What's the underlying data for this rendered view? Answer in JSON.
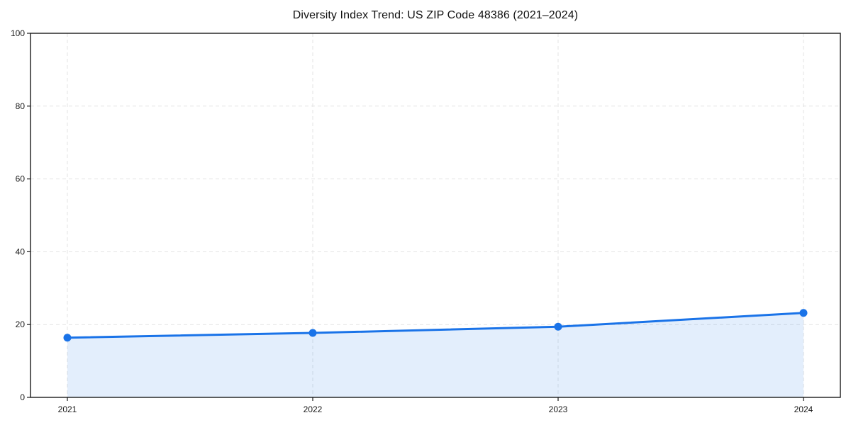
{
  "chart_data": {
    "type": "line",
    "title": "Diversity Index Trend: US ZIP Code 48386 (2021–2024)",
    "xlabel": "",
    "ylabel": "",
    "x": [
      "2021",
      "2022",
      "2023",
      "2024"
    ],
    "values": [
      16.4,
      17.7,
      19.4,
      23.2
    ],
    "ylim": [
      0,
      100
    ],
    "yticks": [
      0,
      20,
      40,
      60,
      80,
      100
    ],
    "grid": "on",
    "grid_style": "dashed",
    "legend_position": "none",
    "area_fill": "under-line",
    "marker": "circle",
    "colors": {
      "line": "#1a73e8",
      "marker": "#1a73e8",
      "fill": "#1a73e8",
      "fill_opacity": "0.12",
      "grid": "#e3e3e3",
      "spine": "#1a1a1a",
      "tick_label": "#1a1a1a",
      "title": "#111111",
      "background": "#ffffff"
    }
  }
}
